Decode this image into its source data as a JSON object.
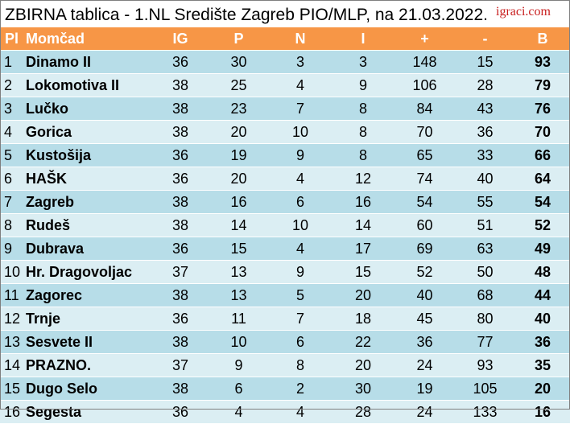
{
  "title": "ZBIRNA tablica - 1.NL Središte Zagreb PIO/MLP, na 21.03.2022.",
  "logo_text": "igraci.com",
  "colors": {
    "header_bg": "#f79646",
    "row_odd": "#b7dde8",
    "row_even": "#dbeef3",
    "logo": "#c81e1e"
  },
  "table": {
    "headers": {
      "pl": "Pl",
      "team": "Momčad",
      "ig": "IG",
      "p": "P",
      "n": "N",
      "i": "I",
      "plus": "+",
      "minus": "-",
      "b": "B"
    },
    "rows": [
      {
        "pl": "1",
        "team": "Dinamo II",
        "ig": "36",
        "p": "30",
        "n": "3",
        "i": "3",
        "plus": "148",
        "minus": "15",
        "b": "93"
      },
      {
        "pl": "2",
        "team": "Lokomotiva II",
        "ig": "38",
        "p": "25",
        "n": "4",
        "i": "9",
        "plus": "106",
        "minus": "28",
        "b": "79"
      },
      {
        "pl": "3",
        "team": "Lučko",
        "ig": "38",
        "p": "23",
        "n": "7",
        "i": "8",
        "plus": "84",
        "minus": "43",
        "b": "76"
      },
      {
        "pl": "4",
        "team": "Gorica",
        "ig": "38",
        "p": "20",
        "n": "10",
        "i": "8",
        "plus": "70",
        "minus": "36",
        "b": "70"
      },
      {
        "pl": "5",
        "team": "Kustošija",
        "ig": "36",
        "p": "19",
        "n": "9",
        "i": "8",
        "plus": "65",
        "minus": "33",
        "b": "66"
      },
      {
        "pl": "6",
        "team": "HAŠK",
        "ig": "36",
        "p": "20",
        "n": "4",
        "i": "12",
        "plus": "74",
        "minus": "40",
        "b": "64"
      },
      {
        "pl": "7",
        "team": "Zagreb",
        "ig": "38",
        "p": "16",
        "n": "6",
        "i": "16",
        "plus": "54",
        "minus": "55",
        "b": "54"
      },
      {
        "pl": "8",
        "team": "Rudeš",
        "ig": "38",
        "p": "14",
        "n": "10",
        "i": "14",
        "plus": "60",
        "minus": "51",
        "b": "52"
      },
      {
        "pl": "9",
        "team": "Dubrava",
        "ig": "36",
        "p": "15",
        "n": "4",
        "i": "17",
        "plus": "69",
        "minus": "63",
        "b": "49"
      },
      {
        "pl": "10",
        "team": "Hr. Dragovoljac",
        "ig": "37",
        "p": "13",
        "n": "9",
        "i": "15",
        "plus": "52",
        "minus": "50",
        "b": "48"
      },
      {
        "pl": "11",
        "team": "Zagorec",
        "ig": "38",
        "p": "13",
        "n": "5",
        "i": "20",
        "plus": "40",
        "minus": "68",
        "b": "44"
      },
      {
        "pl": "12",
        "team": "Trnje",
        "ig": "36",
        "p": "11",
        "n": "7",
        "i": "18",
        "plus": "45",
        "minus": "80",
        "b": "40"
      },
      {
        "pl": "13",
        "team": "Sesvete II",
        "ig": "38",
        "p": "10",
        "n": "6",
        "i": "22",
        "plus": "36",
        "minus": "77",
        "b": "36"
      },
      {
        "pl": "14",
        "team": "PRAZNO.",
        "ig": "37",
        "p": "9",
        "n": "8",
        "i": "20",
        "plus": "24",
        "minus": "93",
        "b": "35"
      },
      {
        "pl": "15",
        "team": "Dugo Selo",
        "ig": "38",
        "p": "6",
        "n": "2",
        "i": "30",
        "plus": "19",
        "minus": "105",
        "b": "20"
      },
      {
        "pl": "16",
        "team": "Segesta",
        "ig": "36",
        "p": "4",
        "n": "4",
        "i": "28",
        "plus": "24",
        "minus": "133",
        "b": "16"
      }
    ]
  }
}
